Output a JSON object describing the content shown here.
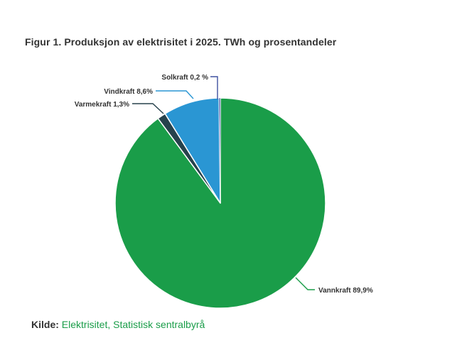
{
  "title": "Figur 1. Produksjon av elektrisitet i 2025. TWh og prosentandeler",
  "source": {
    "prefix": "Kilde:",
    "link": "Elektrisitet, Statistisk sentralbyrå",
    "link_color": "#1a9d49",
    "text_color": "#333333"
  },
  "chart_data": {
    "type": "pie",
    "title": "Figur 1. Produksjon av elektrisitet i 2025. TWh og prosentandeler",
    "unit": "TWh og prosentandeler",
    "start_angle_deg": 0,
    "direction": "clockwise",
    "legend": "none",
    "labels": "outside-with-leader-lines",
    "slices": [
      {
        "label": "Vannkraft",
        "value_pct": 89.9,
        "display": "Vannkraft 89,9%",
        "color": "#1a9d49"
      },
      {
        "label": "Varmekraft",
        "value_pct": 1.3,
        "display": "Varmekraft 1,3%",
        "color": "#26424c"
      },
      {
        "label": "Vindkraft",
        "value_pct": 8.6,
        "display": "Vindkraft 8,6%",
        "color": "#2a96d3"
      },
      {
        "label": "Solkraft",
        "value_pct": 0.2,
        "display": "Solkraft 0,2 %",
        "color": "#3e51a0"
      }
    ]
  }
}
